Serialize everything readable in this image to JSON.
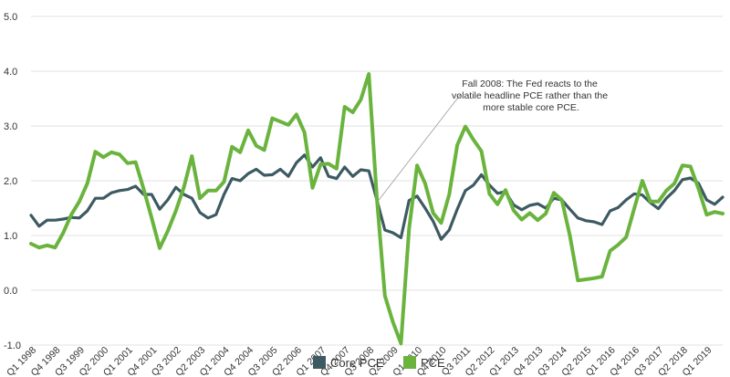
{
  "chart_data": {
    "type": "line",
    "title": "",
    "xlabel": "",
    "ylabel": "",
    "ylim": [
      -1.0,
      5.0
    ],
    "yticks": [
      "5.0",
      "4.0",
      "3.0",
      "2.0",
      "1.0",
      "0.0",
      "-1.0"
    ],
    "grid": "horizontal",
    "legend_position": "bottom",
    "x_labels": [
      "Q1 1998",
      "Q4 1998",
      "Q3 1999",
      "Q2 2000",
      "Q1 2001",
      "Q4 2001",
      "Q3 2002",
      "Q2 2003",
      "Q1 2004",
      "Q4 2004",
      "Q3 2005",
      "Q2 2006",
      "Q1 2007",
      "Q4 2007",
      "Q3 2008",
      "Q2 2009",
      "Q1 2010",
      "Q4 2010",
      "Q3 2011",
      "Q2 2012",
      "Q1 2013",
      "Q4 2013",
      "Q3 2014",
      "Q2 2015",
      "Q1 2016",
      "Q4 2016",
      "Q3 2017",
      "Q2 2018",
      "Q1 2019"
    ],
    "annotation": {
      "lines": [
        "Fall 2008: The Fed reacts to the",
        "volatile headline PCE rather than the",
        "more stable core PCE."
      ],
      "target_quarter": 43
    },
    "series": [
      {
        "name": "Core PCE",
        "color": "#3d5a63",
        "values": [
          1.37,
          1.17,
          1.28,
          1.28,
          1.3,
          1.33,
          1.32,
          1.45,
          1.68,
          1.68,
          1.78,
          1.82,
          1.84,
          1.9,
          1.75,
          1.75,
          1.48,
          1.65,
          1.88,
          1.75,
          1.68,
          1.42,
          1.32,
          1.38,
          1.75,
          2.04,
          2.0,
          2.13,
          2.21,
          2.1,
          2.11,
          2.21,
          2.08,
          2.33,
          2.47,
          2.25,
          2.42,
          2.08,
          2.04,
          2.25,
          2.08,
          2.2,
          2.18,
          1.65,
          1.1,
          1.05,
          0.96,
          1.64,
          1.72,
          1.5,
          1.26,
          0.93,
          1.1,
          1.48,
          1.82,
          1.92,
          2.11,
          1.92,
          1.77,
          1.8,
          1.56,
          1.47,
          1.55,
          1.58,
          1.5,
          1.68,
          1.65,
          1.48,
          1.32,
          1.27,
          1.25,
          1.2,
          1.45,
          1.51,
          1.65,
          1.76,
          1.74,
          1.6,
          1.49,
          1.68,
          1.82,
          2.02,
          2.05,
          1.95,
          1.65,
          1.57,
          1.7
        ]
      },
      {
        "name": "PCE",
        "color": "#6ab43e",
        "values": [
          0.85,
          0.78,
          0.82,
          0.78,
          1.05,
          1.38,
          1.62,
          1.95,
          2.53,
          2.43,
          2.52,
          2.48,
          2.32,
          2.34,
          1.85,
          1.32,
          0.77,
          1.08,
          1.45,
          1.88,
          2.45,
          1.68,
          1.82,
          1.82,
          1.98,
          2.62,
          2.52,
          2.92,
          2.64,
          2.56,
          3.14,
          3.08,
          3.02,
          3.21,
          2.88,
          1.87,
          2.3,
          2.31,
          2.22,
          3.35,
          3.25,
          3.48,
          3.95,
          1.68,
          -0.1,
          -0.58,
          -0.97,
          1.12,
          2.28,
          1.95,
          1.41,
          1.23,
          1.75,
          2.65,
          2.99,
          2.75,
          2.54,
          1.76,
          1.57,
          1.83,
          1.46,
          1.29,
          1.41,
          1.28,
          1.4,
          1.78,
          1.65,
          1.0,
          0.18,
          0.2,
          0.22,
          0.25,
          0.72,
          0.83,
          0.97,
          1.49,
          2.0,
          1.62,
          1.62,
          1.82,
          1.95,
          2.28,
          2.26,
          1.85,
          1.38,
          1.43,
          1.4
        ]
      }
    ]
  }
}
